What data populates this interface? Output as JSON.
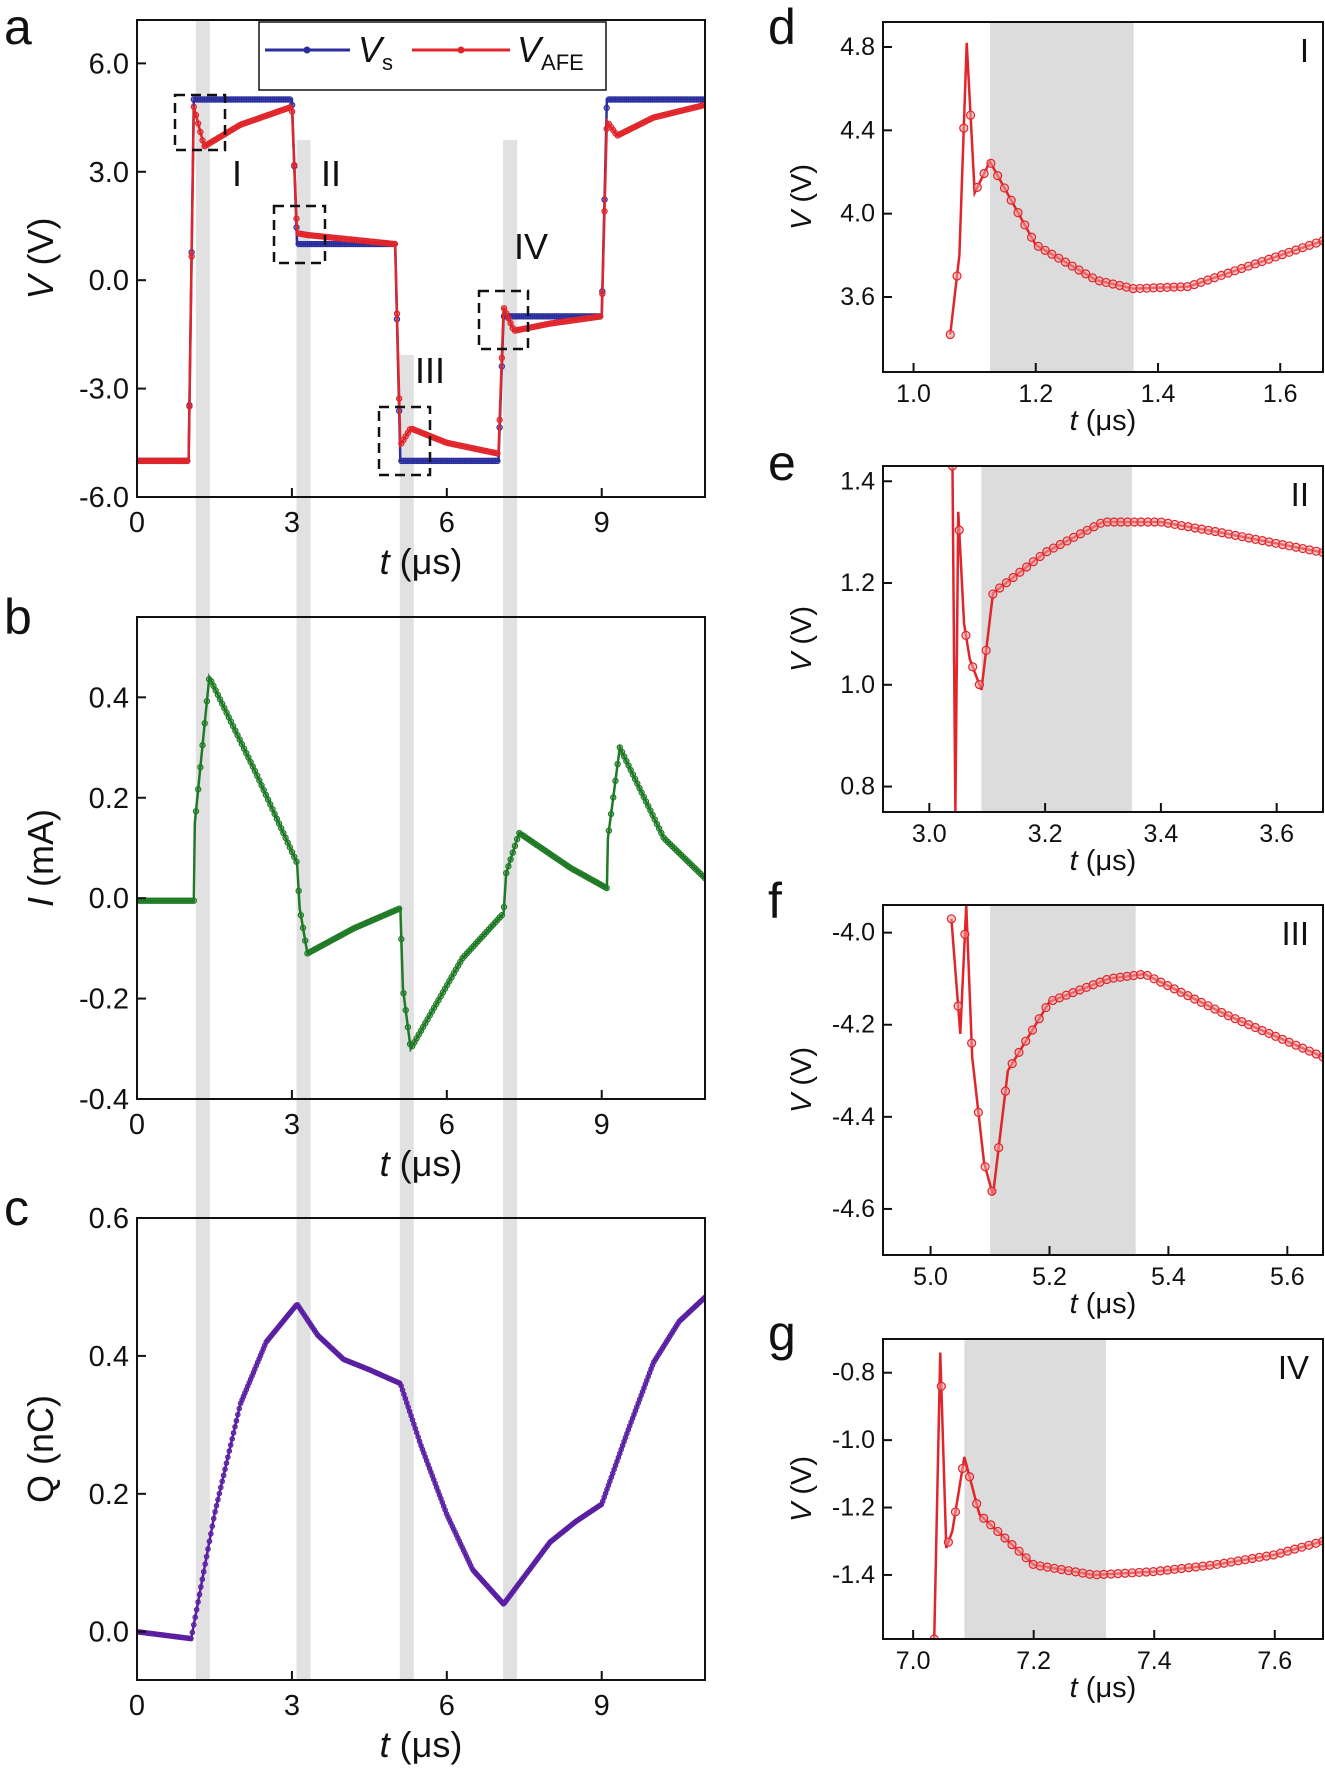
{
  "figure": {
    "panel_letters": [
      "a",
      "b",
      "c",
      "d",
      "e",
      "f",
      "g"
    ]
  },
  "colors": {
    "vs": "#2b2f9e",
    "vafe": "#e0252b",
    "current": "#1f7a25",
    "charge": "#5a1fa3",
    "highlight": "#dcdcdc"
  },
  "chart_data": [
    {
      "panel": "a",
      "type": "line",
      "xlabel": "t (μs)",
      "ylabel": "V (V)",
      "xlim": [
        0,
        11
      ],
      "ylim": [
        -6,
        7.2
      ],
      "xticks": [
        "0",
        "3",
        "6",
        "9"
      ],
      "yticks": [
        "6.0",
        "3.0",
        "0.0",
        "-3.0",
        "-6.0"
      ],
      "legend": {
        "placement": "top",
        "entries": [
          "Vs",
          "VAFE"
        ]
      },
      "region_labels": [
        "I",
        "II",
        "III",
        "IV"
      ],
      "shaded_bands_us": [
        [
          1.15,
          1.4
        ],
        [
          3.1,
          3.35
        ],
        [
          5.1,
          5.35
        ],
        [
          7.1,
          7.35
        ]
      ],
      "series": [
        {
          "name": "Vs",
          "x": [
            0,
            1.0,
            1.1,
            3.0,
            3.1,
            5.0,
            5.1,
            7.0,
            7.1,
            9.0,
            9.1,
            11
          ],
          "values": [
            -5,
            -5,
            5,
            5,
            1,
            1,
            -5,
            -5,
            -1,
            -1,
            5,
            5
          ]
        },
        {
          "name": "VAFE",
          "x": [
            0,
            1.0,
            1.1,
            1.3,
            2.0,
            3.0,
            3.1,
            3.3,
            5.0,
            5.1,
            5.3,
            6.0,
            7.0,
            7.1,
            7.3,
            8.0,
            9.0,
            9.1,
            9.3,
            10.0,
            11
          ],
          "values": [
            -5,
            -5,
            4.8,
            3.7,
            4.3,
            4.8,
            1.3,
            1.25,
            1.0,
            -4.56,
            -4.1,
            -4.5,
            -4.8,
            -0.75,
            -1.4,
            -1.2,
            -1.0,
            4.4,
            4.0,
            4.5,
            4.85
          ]
        }
      ]
    },
    {
      "panel": "b",
      "type": "line",
      "xlabel": "t (μs)",
      "ylabel": "I (mA)",
      "xlim": [
        0,
        11
      ],
      "ylim": [
        -0.4,
        0.56
      ],
      "xticks": [
        "0",
        "3",
        "6",
        "9"
      ],
      "yticks": [
        "0.4",
        "0.2",
        "0.0",
        "-0.2",
        "-0.4"
      ],
      "series": [
        {
          "name": "",
          "x": [
            0,
            1.1,
            1.12,
            1.4,
            2.3,
            3.1,
            3.15,
            3.3,
            4.2,
            5.1,
            5.15,
            5.3,
            6.3,
            7.1,
            7.15,
            7.4,
            8.4,
            9.1,
            9.12,
            9.35,
            10.2,
            11
          ],
          "values": [
            -0.005,
            -0.005,
            0.15,
            0.44,
            0.25,
            0.07,
            -0.02,
            -0.11,
            -0.06,
            -0.02,
            -0.18,
            -0.3,
            -0.12,
            -0.03,
            0.05,
            0.13,
            0.06,
            0.02,
            0.12,
            0.3,
            0.12,
            0.04
          ]
        }
      ]
    },
    {
      "panel": "c",
      "type": "line",
      "xlabel": "t (μs)",
      "ylabel": "Q (nC)",
      "xlim": [
        0,
        11
      ],
      "ylim": [
        -0.07,
        0.6
      ],
      "xticks": [
        "0",
        "3",
        "6",
        "9"
      ],
      "yticks": [
        "0.6",
        "0.4",
        "0.2",
        "0.0"
      ],
      "series": [
        {
          "name": "",
          "x": [
            0,
            1.05,
            1.5,
            2.0,
            2.5,
            3.1,
            3.5,
            4.0,
            4.5,
            5.1,
            5.5,
            6.0,
            6.5,
            7.1,
            7.5,
            8.0,
            8.5,
            9.0,
            9.5,
            10.0,
            10.5,
            11
          ],
          "values": [
            0.0,
            -0.01,
            0.17,
            0.33,
            0.42,
            0.475,
            0.43,
            0.395,
            0.38,
            0.36,
            0.27,
            0.17,
            0.09,
            0.04,
            0.08,
            0.13,
            0.16,
            0.185,
            0.29,
            0.39,
            0.45,
            0.485
          ]
        }
      ]
    },
    {
      "panel": "d",
      "type": "line",
      "xlabel": "t (μs)",
      "ylabel": "V (V)",
      "xlim": [
        0.95,
        1.67
      ],
      "ylim": [
        3.24,
        4.92
      ],
      "xticks": [
        "1.0",
        "1.2",
        "1.4",
        "1.6"
      ],
      "yticks": [
        "4.8",
        "4.4",
        "4.0",
        "3.6"
      ],
      "region_label": "I",
      "shaded_band_us": [
        1.125,
        1.36
      ],
      "series": [
        {
          "name": "VAFE",
          "x": [
            1.06,
            1.075,
            1.087,
            1.1,
            1.125,
            1.2,
            1.3,
            1.36,
            1.45,
            1.55,
            1.67
          ],
          "values": [
            3.42,
            3.8,
            4.82,
            4.1,
            4.25,
            3.85,
            3.68,
            3.64,
            3.65,
            3.75,
            3.87
          ]
        }
      ]
    },
    {
      "panel": "e",
      "type": "line",
      "xlabel": "t (μs)",
      "ylabel": "V (V)",
      "xlim": [
        2.92,
        3.68
      ],
      "ylim": [
        0.75,
        1.43
      ],
      "xticks": [
        "3.0",
        "3.2",
        "3.4",
        "3.6"
      ],
      "yticks": [
        "1.4",
        "1.2",
        "1.0",
        "0.8"
      ],
      "region_label": "II",
      "shaded_band_us": [
        3.09,
        3.35
      ],
      "series": [
        {
          "name": "VAFE",
          "x": [
            3.04,
            3.045,
            3.05,
            3.06,
            3.07,
            3.09,
            3.11,
            3.2,
            3.3,
            3.4,
            3.5,
            3.68
          ],
          "values": [
            1.43,
            0.75,
            1.34,
            1.12,
            1.05,
            0.99,
            1.18,
            1.26,
            1.32,
            1.32,
            1.3,
            1.26
          ]
        }
      ]
    },
    {
      "panel": "f",
      "type": "line",
      "xlabel": "t (μs)",
      "ylabel": "V (V)",
      "xlim": [
        4.92,
        5.66
      ],
      "ylim": [
        -4.7,
        -3.94
      ],
      "xticks": [
        "5.0",
        "5.2",
        "5.4",
        "5.6"
      ],
      "yticks": [
        "-4.0",
        "-4.2",
        "-4.4",
        "-4.6"
      ],
      "region_label": "III",
      "shaded_band_us": [
        5.1,
        5.345
      ],
      "series": [
        {
          "name": "VAFE",
          "x": [
            5.035,
            5.05,
            5.06,
            5.07,
            5.09,
            5.105,
            5.13,
            5.2,
            5.3,
            5.36,
            5.5,
            5.66
          ],
          "values": [
            -3.97,
            -4.22,
            -3.94,
            -4.27,
            -4.5,
            -4.57,
            -4.3,
            -4.15,
            -4.1,
            -4.09,
            -4.18,
            -4.27
          ]
        }
      ]
    },
    {
      "panel": "g",
      "type": "line",
      "xlabel": "t (μs)",
      "ylabel": "V (V)",
      "xlim": [
        6.95,
        7.68
      ],
      "ylim": [
        -1.59,
        -0.7
      ],
      "xticks": [
        "7.0",
        "7.2",
        "7.4",
        "7.6"
      ],
      "yticks": [
        "-0.8",
        "-1.0",
        "-1.2",
        "-1.4"
      ],
      "region_label": "IV",
      "shaded_band_us": [
        7.085,
        7.32
      ],
      "series": [
        {
          "name": "VAFE",
          "x": [
            7.035,
            7.045,
            7.055,
            7.065,
            7.085,
            7.11,
            7.2,
            7.3,
            7.4,
            7.5,
            7.6,
            7.68
          ],
          "values": [
            -1.59,
            -0.74,
            -1.32,
            -1.27,
            -1.05,
            -1.22,
            -1.37,
            -1.4,
            -1.39,
            -1.37,
            -1.34,
            -1.3
          ]
        }
      ]
    }
  ]
}
